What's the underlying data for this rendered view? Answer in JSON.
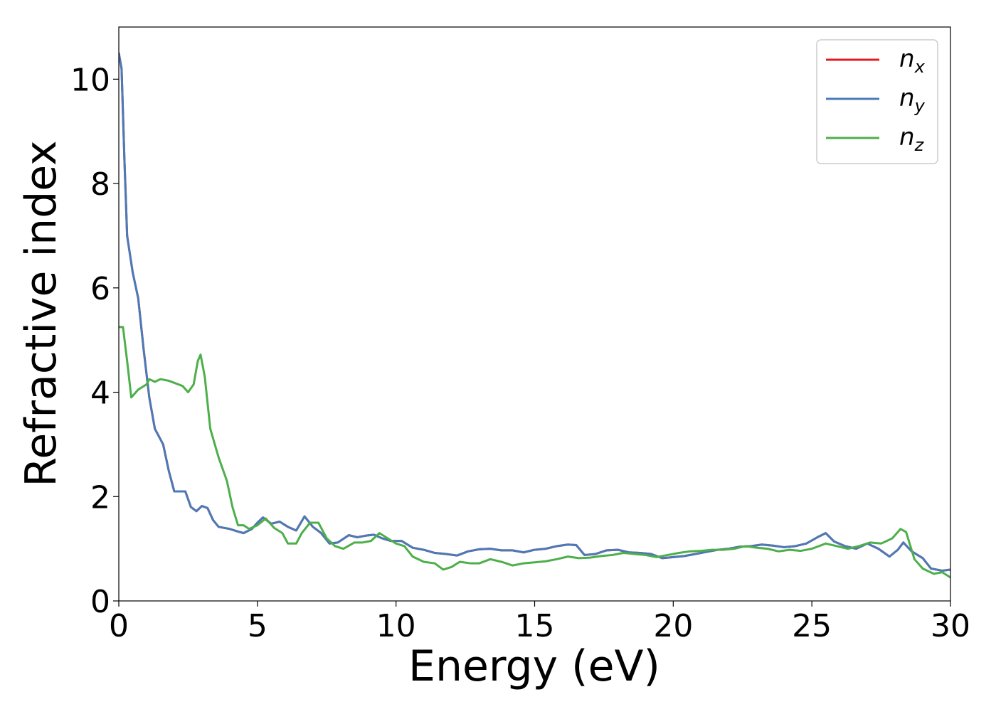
{
  "chart_data": {
    "type": "line",
    "title": "",
    "xlabel": "Energy (eV)",
    "ylabel": "Refractive index",
    "xlim": [
      0,
      30
    ],
    "ylim": [
      0,
      11
    ],
    "x_ticks": [
      0,
      5,
      10,
      15,
      20,
      25,
      30
    ],
    "y_ticks": [
      0,
      2,
      4,
      6,
      8,
      10
    ],
    "grid": false,
    "legend_position": "top-right",
    "series": [
      {
        "name": "n_x",
        "label_base": "n",
        "label_sub": "x",
        "color": "#e41a1c",
        "points": [
          [
            0,
            10.5
          ],
          [
            0.1,
            10.2
          ],
          [
            0.2,
            8.5
          ],
          [
            0.3,
            7.0
          ],
          [
            0.5,
            6.3
          ],
          [
            0.7,
            5.8
          ],
          [
            0.9,
            4.8
          ],
          [
            1.1,
            3.9
          ],
          [
            1.3,
            3.3
          ],
          [
            1.5,
            3.1
          ],
          [
            1.6,
            3.0
          ],
          [
            1.8,
            2.5
          ],
          [
            2.0,
            2.1
          ],
          [
            2.2,
            2.1
          ],
          [
            2.4,
            2.1
          ],
          [
            2.6,
            1.8
          ],
          [
            2.8,
            1.72
          ],
          [
            3.0,
            1.82
          ],
          [
            3.2,
            1.78
          ],
          [
            3.4,
            1.55
          ],
          [
            3.6,
            1.42
          ],
          [
            3.8,
            1.4
          ],
          [
            4.0,
            1.38
          ],
          [
            4.3,
            1.33
          ],
          [
            4.5,
            1.3
          ],
          [
            4.8,
            1.38
          ],
          [
            5.0,
            1.5
          ],
          [
            5.2,
            1.6
          ],
          [
            5.5,
            1.48
          ],
          [
            5.8,
            1.52
          ],
          [
            6.1,
            1.42
          ],
          [
            6.4,
            1.35
          ],
          [
            6.7,
            1.62
          ],
          [
            7.0,
            1.42
          ],
          [
            7.3,
            1.3
          ],
          [
            7.6,
            1.1
          ],
          [
            7.9,
            1.12
          ],
          [
            8.3,
            1.26
          ],
          [
            8.6,
            1.22
          ],
          [
            8.9,
            1.25
          ],
          [
            9.2,
            1.27
          ],
          [
            9.5,
            1.2
          ],
          [
            9.8,
            1.15
          ],
          [
            10.2,
            1.15
          ],
          [
            10.6,
            1.02
          ],
          [
            11.0,
            0.98
          ],
          [
            11.4,
            0.92
          ],
          [
            11.8,
            0.9
          ],
          [
            12.2,
            0.87
          ],
          [
            12.6,
            0.95
          ],
          [
            13.0,
            0.99
          ],
          [
            13.4,
            1.0
          ],
          [
            13.8,
            0.97
          ],
          [
            14.2,
            0.97
          ],
          [
            14.6,
            0.93
          ],
          [
            15.0,
            0.98
          ],
          [
            15.4,
            1.0
          ],
          [
            15.8,
            1.05
          ],
          [
            16.2,
            1.08
          ],
          [
            16.5,
            1.07
          ],
          [
            16.8,
            0.88
          ],
          [
            17.2,
            0.9
          ],
          [
            17.6,
            0.97
          ],
          [
            18.0,
            0.98
          ],
          [
            18.4,
            0.93
          ],
          [
            18.8,
            0.92
          ],
          [
            19.2,
            0.9
          ],
          [
            19.6,
            0.82
          ],
          [
            20.0,
            0.84
          ],
          [
            20.4,
            0.86
          ],
          [
            20.8,
            0.9
          ],
          [
            21.2,
            0.94
          ],
          [
            21.6,
            0.98
          ],
          [
            22.0,
            1.0
          ],
          [
            22.4,
            1.04
          ],
          [
            22.8,
            1.05
          ],
          [
            23.2,
            1.08
          ],
          [
            23.6,
            1.06
          ],
          [
            24.0,
            1.03
          ],
          [
            24.4,
            1.05
          ],
          [
            24.8,
            1.1
          ],
          [
            25.2,
            1.22
          ],
          [
            25.5,
            1.3
          ],
          [
            25.8,
            1.14
          ],
          [
            26.2,
            1.05
          ],
          [
            26.6,
            1.0
          ],
          [
            27.0,
            1.1
          ],
          [
            27.4,
            1.0
          ],
          [
            27.8,
            0.85
          ],
          [
            28.1,
            0.98
          ],
          [
            28.3,
            1.12
          ],
          [
            28.6,
            0.95
          ],
          [
            29.0,
            0.82
          ],
          [
            29.3,
            0.62
          ],
          [
            29.7,
            0.58
          ],
          [
            30.0,
            0.6
          ]
        ]
      },
      {
        "name": "n_y",
        "label_base": "n",
        "label_sub": "y",
        "color": "#4a7ab7",
        "points": [
          [
            0,
            10.5
          ],
          [
            0.1,
            10.2
          ],
          [
            0.2,
            8.5
          ],
          [
            0.3,
            7.0
          ],
          [
            0.5,
            6.3
          ],
          [
            0.7,
            5.8
          ],
          [
            0.9,
            4.8
          ],
          [
            1.1,
            3.9
          ],
          [
            1.3,
            3.3
          ],
          [
            1.5,
            3.1
          ],
          [
            1.6,
            3.0
          ],
          [
            1.8,
            2.5
          ],
          [
            2.0,
            2.1
          ],
          [
            2.2,
            2.1
          ],
          [
            2.4,
            2.1
          ],
          [
            2.6,
            1.8
          ],
          [
            2.8,
            1.72
          ],
          [
            3.0,
            1.82
          ],
          [
            3.2,
            1.78
          ],
          [
            3.4,
            1.55
          ],
          [
            3.6,
            1.42
          ],
          [
            3.8,
            1.4
          ],
          [
            4.0,
            1.38
          ],
          [
            4.3,
            1.33
          ],
          [
            4.5,
            1.3
          ],
          [
            4.8,
            1.38
          ],
          [
            5.0,
            1.5
          ],
          [
            5.2,
            1.6
          ],
          [
            5.5,
            1.48
          ],
          [
            5.8,
            1.52
          ],
          [
            6.1,
            1.42
          ],
          [
            6.4,
            1.35
          ],
          [
            6.7,
            1.62
          ],
          [
            7.0,
            1.42
          ],
          [
            7.3,
            1.3
          ],
          [
            7.6,
            1.1
          ],
          [
            7.9,
            1.12
          ],
          [
            8.3,
            1.26
          ],
          [
            8.6,
            1.22
          ],
          [
            8.9,
            1.25
          ],
          [
            9.2,
            1.27
          ],
          [
            9.5,
            1.2
          ],
          [
            9.8,
            1.15
          ],
          [
            10.2,
            1.15
          ],
          [
            10.6,
            1.02
          ],
          [
            11.0,
            0.98
          ],
          [
            11.4,
            0.92
          ],
          [
            11.8,
            0.9
          ],
          [
            12.2,
            0.87
          ],
          [
            12.6,
            0.95
          ],
          [
            13.0,
            0.99
          ],
          [
            13.4,
            1.0
          ],
          [
            13.8,
            0.97
          ],
          [
            14.2,
            0.97
          ],
          [
            14.6,
            0.93
          ],
          [
            15.0,
            0.98
          ],
          [
            15.4,
            1.0
          ],
          [
            15.8,
            1.05
          ],
          [
            16.2,
            1.08
          ],
          [
            16.5,
            1.07
          ],
          [
            16.8,
            0.88
          ],
          [
            17.2,
            0.9
          ],
          [
            17.6,
            0.97
          ],
          [
            18.0,
            0.98
          ],
          [
            18.4,
            0.93
          ],
          [
            18.8,
            0.92
          ],
          [
            19.2,
            0.9
          ],
          [
            19.6,
            0.82
          ],
          [
            20.0,
            0.84
          ],
          [
            20.4,
            0.86
          ],
          [
            20.8,
            0.9
          ],
          [
            21.2,
            0.94
          ],
          [
            21.6,
            0.98
          ],
          [
            22.0,
            1.0
          ],
          [
            22.4,
            1.04
          ],
          [
            22.8,
            1.05
          ],
          [
            23.2,
            1.08
          ],
          [
            23.6,
            1.06
          ],
          [
            24.0,
            1.03
          ],
          [
            24.4,
            1.05
          ],
          [
            24.8,
            1.1
          ],
          [
            25.2,
            1.22
          ],
          [
            25.5,
            1.3
          ],
          [
            25.8,
            1.14
          ],
          [
            26.2,
            1.05
          ],
          [
            26.6,
            1.0
          ],
          [
            27.0,
            1.1
          ],
          [
            27.4,
            1.0
          ],
          [
            27.8,
            0.85
          ],
          [
            28.1,
            0.98
          ],
          [
            28.3,
            1.12
          ],
          [
            28.6,
            0.95
          ],
          [
            29.0,
            0.82
          ],
          [
            29.3,
            0.62
          ],
          [
            29.7,
            0.58
          ],
          [
            30.0,
            0.6
          ]
        ]
      },
      {
        "name": "n_z",
        "label_base": "n",
        "label_sub": "z",
        "color": "#4daf4a",
        "points": [
          [
            0,
            5.25
          ],
          [
            0.15,
            5.25
          ],
          [
            0.3,
            4.6
          ],
          [
            0.45,
            3.9
          ],
          [
            0.7,
            4.05
          ],
          [
            1.0,
            4.15
          ],
          [
            1.1,
            4.25
          ],
          [
            1.3,
            4.2
          ],
          [
            1.5,
            4.25
          ],
          [
            1.8,
            4.22
          ],
          [
            2.0,
            4.18
          ],
          [
            2.3,
            4.12
          ],
          [
            2.5,
            4.0
          ],
          [
            2.7,
            4.15
          ],
          [
            2.85,
            4.6
          ],
          [
            2.95,
            4.72
          ],
          [
            3.1,
            4.3
          ],
          [
            3.3,
            3.3
          ],
          [
            3.6,
            2.75
          ],
          [
            3.9,
            2.3
          ],
          [
            4.1,
            1.8
          ],
          [
            4.3,
            1.45
          ],
          [
            4.5,
            1.45
          ],
          [
            4.7,
            1.38
          ],
          [
            5.0,
            1.45
          ],
          [
            5.3,
            1.58
          ],
          [
            5.6,
            1.4
          ],
          [
            5.9,
            1.3
          ],
          [
            6.1,
            1.1
          ],
          [
            6.4,
            1.1
          ],
          [
            6.6,
            1.3
          ],
          [
            6.9,
            1.5
          ],
          [
            7.2,
            1.5
          ],
          [
            7.5,
            1.2
          ],
          [
            7.8,
            1.05
          ],
          [
            8.1,
            1.0
          ],
          [
            8.5,
            1.12
          ],
          [
            8.8,
            1.12
          ],
          [
            9.1,
            1.15
          ],
          [
            9.4,
            1.3
          ],
          [
            9.7,
            1.2
          ],
          [
            10.0,
            1.1
          ],
          [
            10.3,
            1.05
          ],
          [
            10.6,
            0.85
          ],
          [
            11.0,
            0.75
          ],
          [
            11.4,
            0.72
          ],
          [
            11.7,
            0.6
          ],
          [
            12.0,
            0.65
          ],
          [
            12.3,
            0.75
          ],
          [
            12.7,
            0.72
          ],
          [
            13.0,
            0.72
          ],
          [
            13.4,
            0.8
          ],
          [
            13.8,
            0.75
          ],
          [
            14.2,
            0.68
          ],
          [
            14.6,
            0.72
          ],
          [
            15.0,
            0.74
          ],
          [
            15.4,
            0.76
          ],
          [
            15.8,
            0.8
          ],
          [
            16.2,
            0.85
          ],
          [
            16.6,
            0.82
          ],
          [
            17.0,
            0.83
          ],
          [
            17.4,
            0.86
          ],
          [
            17.8,
            0.88
          ],
          [
            18.2,
            0.92
          ],
          [
            18.6,
            0.9
          ],
          [
            19.0,
            0.88
          ],
          [
            19.4,
            0.84
          ],
          [
            19.8,
            0.88
          ],
          [
            20.2,
            0.92
          ],
          [
            20.6,
            0.95
          ],
          [
            21.0,
            0.96
          ],
          [
            21.4,
            0.98
          ],
          [
            21.8,
            0.98
          ],
          [
            22.2,
            1.0
          ],
          [
            22.6,
            1.05
          ],
          [
            23.0,
            1.02
          ],
          [
            23.4,
            1.0
          ],
          [
            23.8,
            0.95
          ],
          [
            24.2,
            0.98
          ],
          [
            24.6,
            0.96
          ],
          [
            25.0,
            1.0
          ],
          [
            25.5,
            1.1
          ],
          [
            25.9,
            1.05
          ],
          [
            26.3,
            1.0
          ],
          [
            26.7,
            1.05
          ],
          [
            27.1,
            1.12
          ],
          [
            27.5,
            1.1
          ],
          [
            27.9,
            1.2
          ],
          [
            28.2,
            1.38
          ],
          [
            28.4,
            1.32
          ],
          [
            28.7,
            0.8
          ],
          [
            29.0,
            0.62
          ],
          [
            29.4,
            0.52
          ],
          [
            29.7,
            0.55
          ],
          [
            30.0,
            0.45
          ]
        ]
      }
    ]
  }
}
